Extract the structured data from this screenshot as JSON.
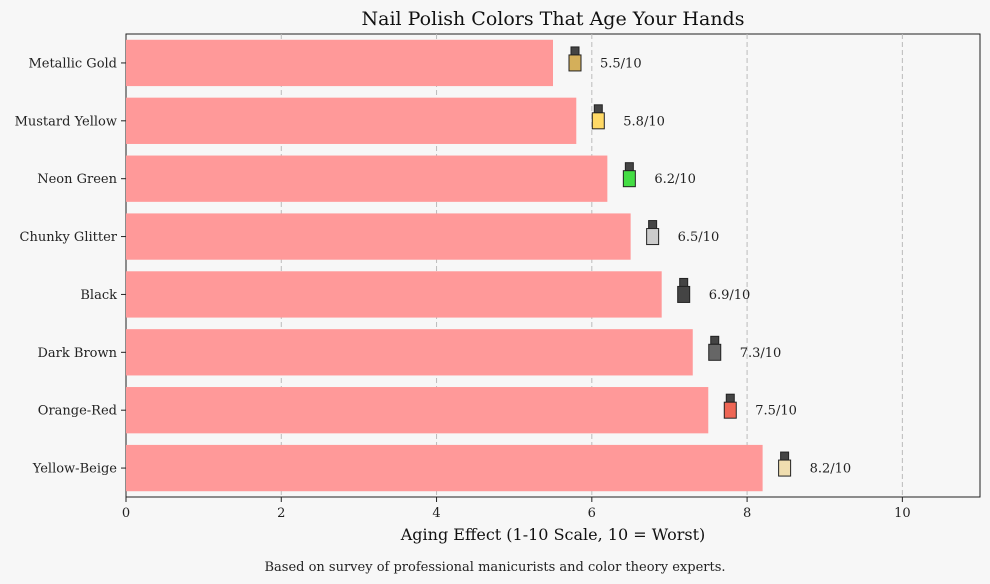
{
  "chart_data": {
    "type": "bar",
    "orientation": "horizontal",
    "title": "Nail Polish Colors That Age Your Hands",
    "xlabel": "Aging Effect (1-10 Scale, 10 = Worst)",
    "ylabel": "",
    "xlim": [
      0,
      11
    ],
    "xticks": [
      0,
      2,
      4,
      6,
      8,
      10
    ],
    "grid": "vertical-dashed",
    "bar_color": "#ff9999",
    "categories": [
      "Metallic Gold",
      "Mustard Yellow",
      "Neon Green",
      "Chunky Glitter",
      "Black",
      "Dark Brown",
      "Orange-Red",
      "Yellow-Beige"
    ],
    "values": [
      5.5,
      5.8,
      6.2,
      6.5,
      6.9,
      7.3,
      7.5,
      8.2
    ],
    "value_labels": [
      "5.5/10",
      "5.8/10",
      "6.2/10",
      "6.5/10",
      "6.9/10",
      "7.3/10",
      "7.5/10",
      "8.2/10"
    ],
    "bottle_colors": [
      "#d4af5a",
      "#ffd966",
      "#44dd44",
      "#cccccc",
      "#444444",
      "#666666",
      "#ee6655",
      "#f0deb0"
    ],
    "footnote": "Based on survey of professional manicurists and color theory experts."
  }
}
